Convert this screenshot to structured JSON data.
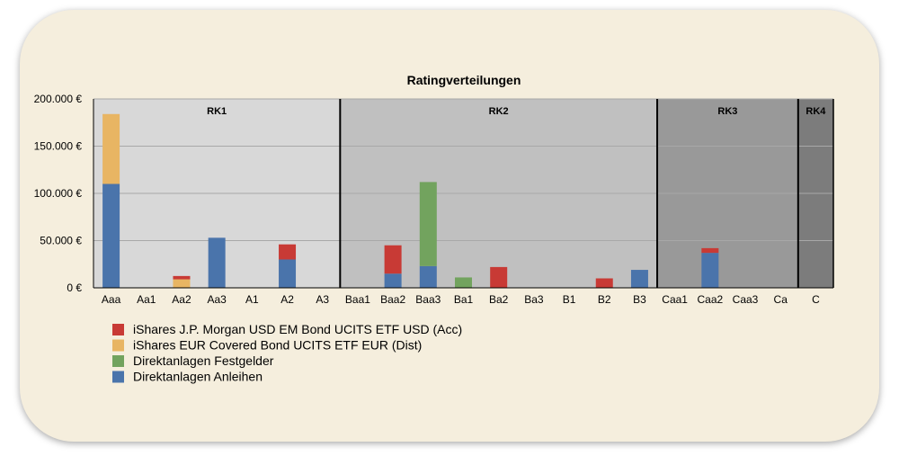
{
  "chart_data": {
    "type": "bar",
    "stacked": true,
    "title": "Ratingverteilungen",
    "categories": [
      "Aaa",
      "Aa1",
      "Aa2",
      "Aa3",
      "A1",
      "A2",
      "A3",
      "Baa1",
      "Baa2",
      "Baa3",
      "Ba1",
      "Ba2",
      "Ba3",
      "B1",
      "B2",
      "B3",
      "Caa1",
      "Caa2",
      "Caa3",
      "Ca",
      "C"
    ],
    "ylim": [
      0,
      200000
    ],
    "yticks": [
      "0 €",
      "50.000 €",
      "100.000 €",
      "150.000 €",
      "200.000 €"
    ],
    "ytick_values": [
      0,
      50000,
      100000,
      150000,
      200000
    ],
    "grid": true,
    "legend_position": "bottom-left",
    "regions": [
      {
        "label": "RK1",
        "from": "Aaa",
        "to": "A3",
        "color": "#d8d8d8"
      },
      {
        "label": "RK2",
        "from": "Baa1",
        "to": "B3",
        "color": "#c0c0c0"
      },
      {
        "label": "RK3",
        "from": "Caa1",
        "to": "Ca",
        "color": "#999999"
      },
      {
        "label": "RK4",
        "from": "C",
        "to": "C",
        "color": "#7c7c7c"
      }
    ],
    "series": [
      {
        "name": "Direktanlagen Anleihen",
        "color": "#4a74ab",
        "values": [
          110000,
          0,
          0,
          53000,
          0,
          30000,
          0,
          0,
          15000,
          23000,
          0,
          0,
          0,
          0,
          0,
          19000,
          0,
          37000,
          0,
          0,
          0
        ]
      },
      {
        "name": "Direktanlagen Festgelder",
        "color": "#72a35e",
        "values": [
          0,
          0,
          0,
          0,
          0,
          0,
          0,
          0,
          0,
          89000,
          11000,
          0,
          0,
          0,
          0,
          0,
          0,
          0,
          0,
          0,
          0
        ]
      },
      {
        "name": "iShares EUR Covered Bond UCITS ETF EUR (Dist)",
        "color": "#e8b563",
        "values": [
          74000,
          0,
          9000,
          0,
          0,
          0,
          0,
          0,
          0,
          0,
          0,
          0,
          0,
          0,
          0,
          0,
          0,
          0,
          0,
          0,
          0
        ]
      },
      {
        "name": "iShares J.P. Morgan USD EM Bond UCITS ETF USD (Acc)",
        "color": "#c83a35",
        "values": [
          0,
          0,
          3500,
          0,
          0,
          16000,
          0,
          0,
          30000,
          0,
          0,
          22000,
          0,
          0,
          10000,
          0,
          0,
          5000,
          0,
          0,
          0
        ]
      }
    ],
    "legend_order": [
      "iShares J.P. Morgan USD EM Bond UCITS ETF USD (Acc)",
      "iShares EUR Covered Bond UCITS ETF EUR (Dist)",
      "Direktanlagen Festgelder",
      "Direktanlagen Anleihen"
    ]
  }
}
